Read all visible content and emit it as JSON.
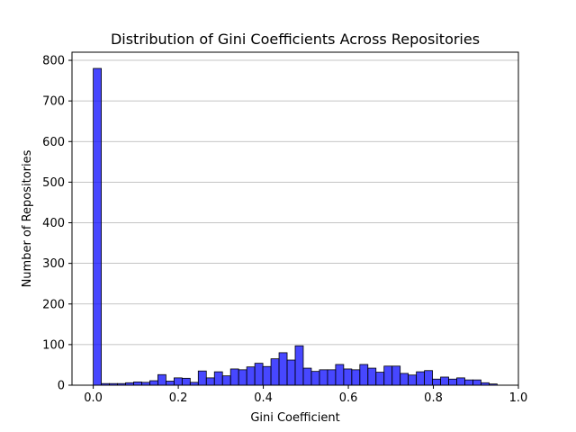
{
  "chart_data": {
    "type": "bar",
    "title": "Distribution of Gini Coefficients Across Repositories",
    "xlabel": "Gini Coefficient",
    "ylabel": "Number of Repositories",
    "xlim": [
      -0.05,
      1.0
    ],
    "ylim": [
      0,
      820
    ],
    "xticks": [
      0.0,
      0.2,
      0.4,
      0.6,
      0.8,
      1.0
    ],
    "xtick_labels": [
      "0.0",
      "0.2",
      "0.4",
      "0.6",
      "0.8",
      "1.0"
    ],
    "yticks": [
      0,
      100,
      200,
      300,
      400,
      500,
      600,
      700,
      800
    ],
    "ytick_labels": [
      "0",
      "100",
      "200",
      "300",
      "400",
      "500",
      "600",
      "700",
      "800"
    ],
    "grid": "y",
    "bar_color": "#0000ff",
    "bar_edge_color": "#000000",
    "bins": {
      "start": 0.0,
      "width": 0.019,
      "counts": [
        780,
        4,
        4,
        4,
        6,
        8,
        7,
        11,
        26,
        10,
        18,
        17,
        7,
        35,
        18,
        33,
        23,
        40,
        38,
        45,
        54,
        46,
        65,
        80,
        62,
        97,
        42,
        34,
        38,
        38,
        51,
        40,
        38,
        51,
        42,
        32,
        47,
        47,
        29,
        25,
        33,
        36,
        15,
        20,
        15,
        18,
        13,
        13,
        6,
        3
      ]
    }
  }
}
